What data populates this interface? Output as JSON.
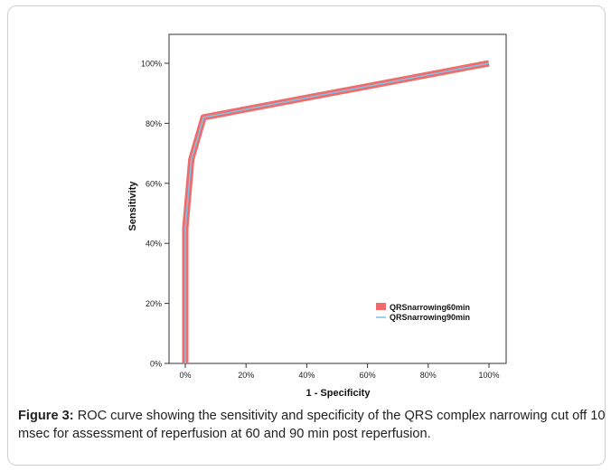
{
  "caption": {
    "label": "Figure 3:",
    "text": "ROC curve showing the sensitivity and specificity of the QRS complex narrowing cut off 10 msec for assessment of reperfusion at 60 and 90 min post reperfusion."
  },
  "chart_data": {
    "type": "line",
    "title": "",
    "xlabel": "1 - Specificity",
    "ylabel": "Sensitivity",
    "xlim": [
      0,
      100
    ],
    "ylim": [
      0,
      100
    ],
    "x_ticks": [
      "0%",
      "20%",
      "40%",
      "60%",
      "80%",
      "100%"
    ],
    "y_ticks": [
      "0%",
      "20%",
      "40%",
      "60%",
      "80%",
      "100%"
    ],
    "grid": false,
    "legend_position": "bottom-right",
    "series": [
      {
        "name": "QRSnarrowing60min",
        "color": "#f26b6b",
        "style": "thick",
        "points": [
          [
            0,
            0
          ],
          [
            0,
            45
          ],
          [
            2,
            68
          ],
          [
            6,
            82
          ],
          [
            100,
            100
          ]
        ]
      },
      {
        "name": "QRSnarrowing90min",
        "color": "#7ec3e6",
        "style": "thin",
        "points": [
          [
            0,
            0
          ],
          [
            0,
            45
          ],
          [
            2,
            68
          ],
          [
            6,
            82
          ],
          [
            100,
            100
          ]
        ]
      }
    ]
  }
}
